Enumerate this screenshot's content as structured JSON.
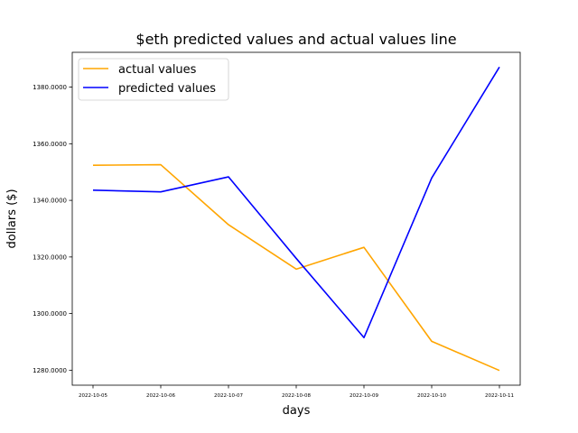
{
  "chart_data": {
    "type": "line",
    "title": "$eth predicted values and actual values line",
    "xlabel": "days",
    "ylabel": "dollars ($)",
    "categories": [
      "2022-10-05",
      "2022-10-06",
      "2022-10-07",
      "2022-10-08",
      "2022-10-09",
      "2022-10-10",
      "2022-10-11"
    ],
    "series": [
      {
        "name": "actual values",
        "color": "#ffa500",
        "values": [
          1352.4,
          1352.6,
          1331.4,
          1315.7,
          1323.4,
          1290.2,
          1279.9
        ]
      },
      {
        "name": "predicted values",
        "color": "#0000ff",
        "values": [
          1343.6,
          1343.0,
          1348.3,
          1319.5,
          1291.5,
          1347.9,
          1387.1
        ]
      }
    ],
    "yticks": [
      1280,
      1300,
      1320,
      1340,
      1360,
      1380
    ],
    "ytick_labels": [
      "1280.0000",
      "1300.0000",
      "1320.0000",
      "1340.0000",
      "1360.0000",
      "1380.0000"
    ],
    "ylim": [
      1274.7,
      1392.3
    ],
    "grid": false,
    "legend_position": "top-left"
  }
}
